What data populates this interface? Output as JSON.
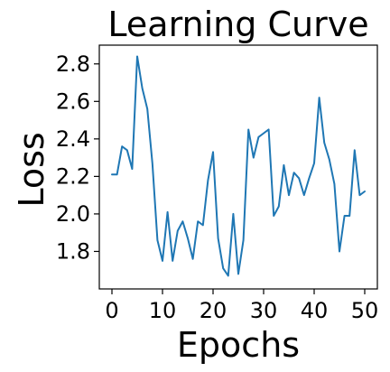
{
  "chart_data": {
    "type": "line",
    "title": "Learning Curve",
    "xlabel": "Epochs",
    "ylabel": "Loss",
    "xlim": [
      -2.5,
      52.5
    ],
    "ylim": [
      1.6,
      2.9
    ],
    "xticks": [
      0,
      10,
      20,
      30,
      40,
      50
    ],
    "yticks": [
      1.8,
      2.0,
      2.2,
      2.4,
      2.6,
      2.8
    ],
    "grid": false,
    "line_color": "#1f77b4",
    "series": [
      {
        "x": [
          0,
          1,
          2,
          3,
          4,
          5,
          6,
          7,
          8,
          9,
          10,
          11,
          12,
          13,
          14,
          15,
          16,
          17,
          18,
          19,
          20,
          21,
          22,
          23,
          24,
          25,
          26,
          27,
          28,
          29,
          30,
          31,
          32,
          33,
          34,
          35,
          36,
          37,
          38,
          39,
          40,
          41,
          42,
          43,
          44,
          45,
          46,
          47,
          48,
          49,
          50
        ],
        "values": [
          2.21,
          2.21,
          2.36,
          2.34,
          2.24,
          2.84,
          2.67,
          2.56,
          2.27,
          1.86,
          1.75,
          2.01,
          1.75,
          1.91,
          1.96,
          1.87,
          1.76,
          1.96,
          1.94,
          2.18,
          2.33,
          1.87,
          1.71,
          1.67,
          2.0,
          1.68,
          1.86,
          2.45,
          2.3,
          2.41,
          2.43,
          2.45,
          1.99,
          2.04,
          2.26,
          2.1,
          2.22,
          2.19,
          2.1,
          2.19,
          2.27,
          2.62,
          2.38,
          2.29,
          2.16,
          1.8,
          1.99,
          1.99,
          2.34,
          2.1,
          2.12
        ]
      }
    ]
  }
}
